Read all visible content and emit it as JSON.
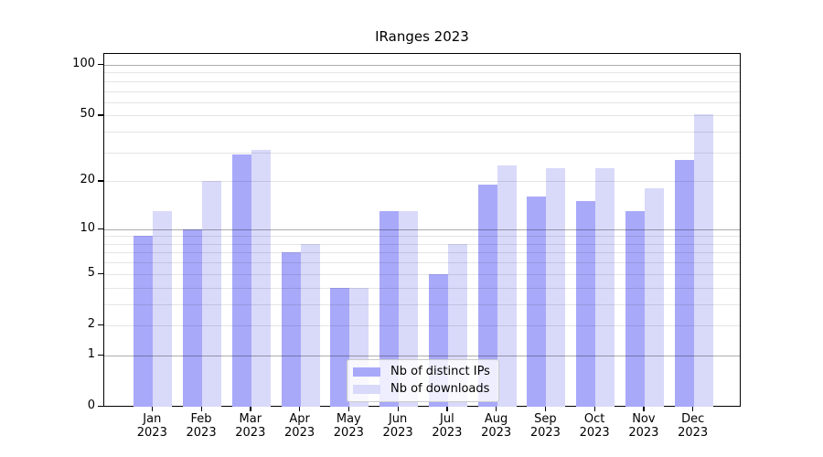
{
  "title": "IRanges 2023",
  "chart_data": {
    "type": "bar",
    "title": "IRanges 2023",
    "categories": [
      "Jan",
      "Feb",
      "Mar",
      "Apr",
      "May",
      "Jun",
      "Jul",
      "Aug",
      "Sep",
      "Oct",
      "Nov",
      "Dec"
    ],
    "x_tick_year": "2023",
    "series": [
      {
        "name": "Nb of distinct IPs",
        "color": "#a9a9fa",
        "values": [
          9,
          10,
          29,
          7,
          4,
          13,
          5,
          19,
          16,
          15,
          13,
          27
        ]
      },
      {
        "name": "Nb of downloads",
        "color": "#d9d9fa",
        "values": [
          13,
          20,
          31,
          8,
          4,
          13,
          8,
          25,
          24,
          24,
          18,
          51
        ]
      }
    ],
    "xlabel": "",
    "ylabel": "",
    "yscale": "log10(1+x)",
    "ytick_labels": [
      "0",
      "1",
      "2",
      "5",
      "10",
      "20",
      "50",
      "100"
    ],
    "ytick_values": [
      0,
      1,
      2,
      5,
      10,
      20,
      50,
      100
    ],
    "ylim": [
      0,
      116
    ],
    "grid": true,
    "legend_position": "lower center"
  }
}
